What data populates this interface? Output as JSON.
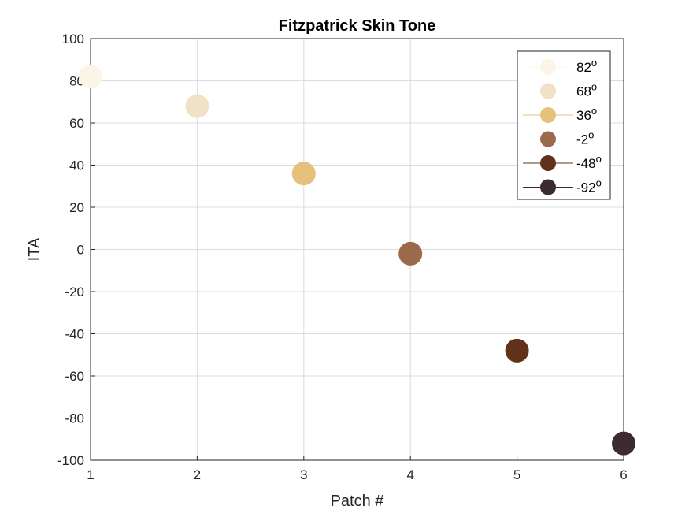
{
  "chart_data": {
    "type": "scatter",
    "title": "Fitzpatrick Skin Tone",
    "xlabel": "Patch #",
    "ylabel": "ITA",
    "xlim": [
      1,
      6
    ],
    "ylim": [
      -100,
      100
    ],
    "xticks": [
      1,
      2,
      3,
      4,
      5,
      6
    ],
    "yticks": [
      -100,
      -80,
      -60,
      -40,
      -20,
      0,
      20,
      40,
      60,
      80,
      100
    ],
    "grid": true,
    "legend_position": "top-right",
    "degree_symbol": "o",
    "series": [
      {
        "name": "82",
        "x": 1,
        "y": 82,
        "color": "#fdf4e8"
      },
      {
        "name": "68",
        "x": 2,
        "y": 68,
        "color": "#f1e1c6"
      },
      {
        "name": "36",
        "x": 3,
        "y": 36,
        "color": "#e6c17b"
      },
      {
        "name": "-2",
        "x": 4,
        "y": -2,
        "color": "#9b6a4b"
      },
      {
        "name": "-48",
        "x": 5,
        "y": -48,
        "color": "#613219"
      },
      {
        "name": "-92",
        "x": 6,
        "y": -92,
        "color": "#3c2b31"
      }
    ]
  }
}
